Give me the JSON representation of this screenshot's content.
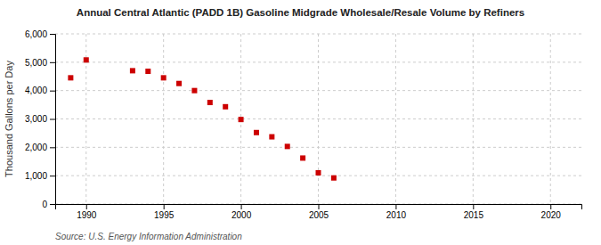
{
  "chart_data": {
    "type": "scatter",
    "title": "Annual Central Atlantic (PADD 1B) Gasoline Midgrade Wholesale/Resale Volume by Refiners",
    "ylabel": "Thousand Gallons per Day",
    "source": "Source: U.S. Energy Information Administration",
    "x": [
      1989,
      1990,
      1993,
      1994,
      1995,
      1996,
      1997,
      1998,
      1999,
      2000,
      2001,
      2002,
      2003,
      2004,
      2005,
      2006
    ],
    "values": [
      4450,
      5080,
      4700,
      4680,
      4450,
      4250,
      4000,
      3580,
      3430,
      2980,
      2520,
      2370,
      2030,
      1620,
      1100,
      920
    ],
    "color": "#cc0000",
    "marker": "square",
    "xlim": [
      1988,
      2022
    ],
    "ylim": [
      0,
      6000
    ],
    "xticks": [
      1990,
      1995,
      2000,
      2005,
      2010,
      2015,
      2020
    ],
    "yticks": [
      0,
      {
        "value": 1000,
        "label": "1,000"
      },
      {
        "value": 2000,
        "label": "2,000"
      },
      {
        "value": 3000,
        "label": "3,000"
      },
      {
        "value": 4000,
        "label": "4,000"
      },
      {
        "value": 5000,
        "label": "5,000"
      },
      {
        "value": 6000,
        "label": "6,000"
      }
    ],
    "grid": true
  }
}
